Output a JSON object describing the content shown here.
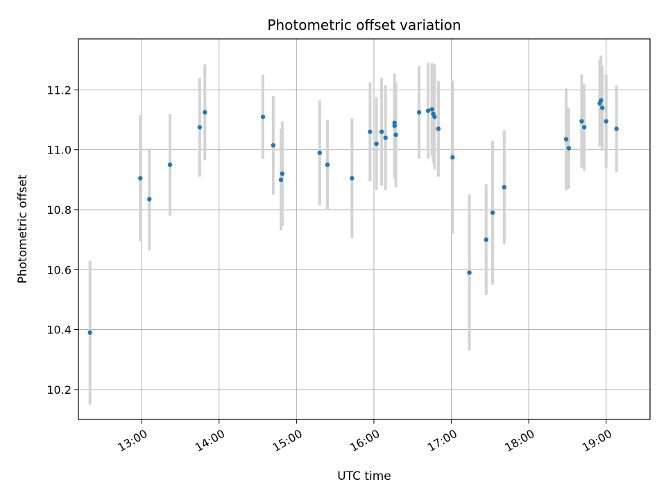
{
  "chart_data": {
    "type": "scatter",
    "title": "Photometric offset variation",
    "xlabel": "UTC time",
    "ylabel": "Photometric offset",
    "x_ticks": [
      "13:00",
      "14:00",
      "15:00",
      "16:00",
      "17:00",
      "18:00",
      "19:00"
    ],
    "y_ticks": [
      "10.2",
      "10.4",
      "10.6",
      "10.8",
      "11.0",
      "11.2"
    ],
    "xlim": [
      "12:11",
      "19:34"
    ],
    "ylim": [
      10.1,
      11.37
    ],
    "grid": true,
    "marker_color": "#1f77b4",
    "errorbar_color": "#d3d3d3",
    "points": [
      {
        "x": "12:20",
        "y": 10.39,
        "err": 0.24
      },
      {
        "x": "12:59",
        "y": 10.905,
        "err": 0.21
      },
      {
        "x": "13:06",
        "y": 10.835,
        "err": 0.17
      },
      {
        "x": "13:22",
        "y": 10.95,
        "err": 0.17
      },
      {
        "x": "13:45",
        "y": 11.075,
        "err": 0.165
      },
      {
        "x": "13:49",
        "y": 11.125,
        "err": 0.16
      },
      {
        "x": "14:34",
        "y": 11.11,
        "err": 0.14
      },
      {
        "x": "14:42",
        "y": 11.015,
        "err": 0.165
      },
      {
        "x": "14:48",
        "y": 10.9,
        "err": 0.17
      },
      {
        "x": "14:49",
        "y": 10.92,
        "err": 0.175
      },
      {
        "x": "15:18",
        "y": 10.99,
        "err": 0.175
      },
      {
        "x": "15:24",
        "y": 10.95,
        "err": 0.15
      },
      {
        "x": "15:43",
        "y": 10.905,
        "err": 0.2
      },
      {
        "x": "15:57",
        "y": 11.06,
        "err": 0.165
      },
      {
        "x": "16:02",
        "y": 11.02,
        "err": 0.155
      },
      {
        "x": "16:06",
        "y": 11.06,
        "err": 0.18
      },
      {
        "x": "16:09",
        "y": 11.04,
        "err": 0.175
      },
      {
        "x": "16:16",
        "y": 11.08,
        "err": 0.175
      },
      {
        "x": "16:16",
        "y": 11.09,
        "err": 0.12
      },
      {
        "x": "16:17",
        "y": 11.05,
        "err": 0.175
      },
      {
        "x": "16:35",
        "y": 11.125,
        "err": 0.155
      },
      {
        "x": "16:42",
        "y": 11.13,
        "err": 0.16
      },
      {
        "x": "16:45",
        "y": 11.135,
        "err": 0.155
      },
      {
        "x": "16:46",
        "y": 11.12,
        "err": 0.165
      },
      {
        "x": "16:47",
        "y": 11.11,
        "err": 0.175
      },
      {
        "x": "16:50",
        "y": 11.07,
        "err": 0.16
      },
      {
        "x": "17:01",
        "y": 10.975,
        "err": 0.255
      },
      {
        "x": "17:14",
        "y": 10.59,
        "err": 0.26
      },
      {
        "x": "17:27",
        "y": 10.7,
        "err": 0.185
      },
      {
        "x": "17:32",
        "y": 10.79,
        "err": 0.24
      },
      {
        "x": "17:41",
        "y": 10.875,
        "err": 0.19
      },
      {
        "x": "18:29",
        "y": 11.035,
        "err": 0.17
      },
      {
        "x": "18:31",
        "y": 11.005,
        "err": 0.135
      },
      {
        "x": "18:41",
        "y": 11.095,
        "err": 0.155
      },
      {
        "x": "18:43",
        "y": 11.075,
        "err": 0.145
      },
      {
        "x": "18:55",
        "y": 11.155,
        "err": 0.145
      },
      {
        "x": "18:56",
        "y": 11.165,
        "err": 0.15
      },
      {
        "x": "18:57",
        "y": 11.14,
        "err": 0.14
      },
      {
        "x": "19:00",
        "y": 11.095,
        "err": 0.155
      },
      {
        "x": "19:08",
        "y": 11.07,
        "err": 0.145
      }
    ]
  }
}
